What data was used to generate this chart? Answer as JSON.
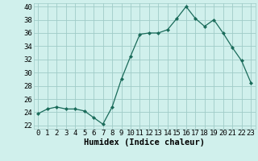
{
  "x": [
    0,
    1,
    2,
    3,
    4,
    5,
    6,
    7,
    8,
    9,
    10,
    11,
    12,
    13,
    14,
    15,
    16,
    17,
    18,
    19,
    20,
    21,
    22,
    23
  ],
  "y": [
    23.8,
    24.5,
    24.8,
    24.5,
    24.5,
    24.2,
    23.2,
    22.2,
    24.8,
    29.0,
    32.5,
    35.8,
    36.0,
    36.0,
    36.5,
    38.2,
    40.0,
    38.2,
    37.0,
    38.0,
    36.0,
    33.8,
    31.8,
    28.5
  ],
  "line_color": "#1a6b5a",
  "marker": "D",
  "marker_size": 2.0,
  "bg_color": "#d0f0ec",
  "grid_color": "#a0ccc8",
  "xlabel": "Humidex (Indice chaleur)",
  "xlabel_fontsize": 7.5,
  "tick_fontsize": 6.5,
  "ylim": [
    21.5,
    40.5
  ],
  "xlim": [
    -0.5,
    23.5
  ],
  "yticks": [
    22,
    24,
    26,
    28,
    30,
    32,
    34,
    36,
    38,
    40
  ],
  "xticks": [
    0,
    1,
    2,
    3,
    4,
    5,
    6,
    7,
    8,
    9,
    10,
    11,
    12,
    13,
    14,
    15,
    16,
    17,
    18,
    19,
    20,
    21,
    22,
    23
  ]
}
